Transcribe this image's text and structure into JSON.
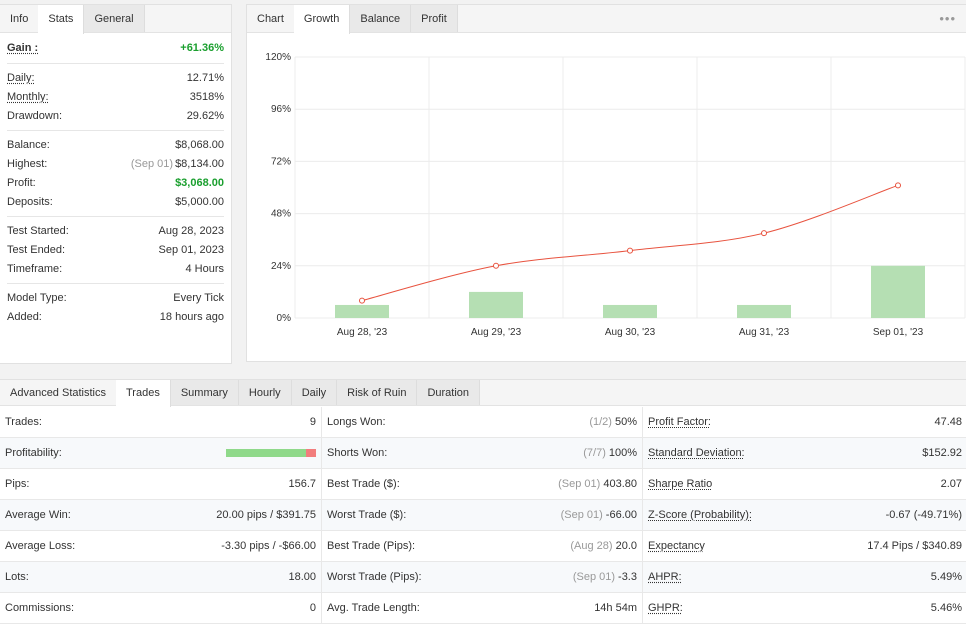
{
  "info_tabs": [
    "Info",
    "Stats",
    "General"
  ],
  "info": {
    "gain_label": "Gain :",
    "gain_value": "+61.36%",
    "rows_a": [
      {
        "k": "Daily:",
        "v": "12.71%",
        "und": true
      },
      {
        "k": "Monthly:",
        "v": "3518%",
        "und": true
      },
      {
        "k": "Drawdown:",
        "v": "29.62%",
        "und": false
      }
    ],
    "balance_label": "Balance:",
    "balance_value": "$8,068.00",
    "highest_label": "Highest:",
    "highest_date": "(Sep 01)",
    "highest_value": "$8,134.00",
    "profit_label": "Profit:",
    "profit_value": "$3,068.00",
    "deposits_label": "Deposits:",
    "deposits_value": "$5,000.00",
    "rows_c": [
      {
        "k": "Test Started:",
        "v": "Aug 28, 2023"
      },
      {
        "k": "Test Ended:",
        "v": "Sep 01, 2023"
      },
      {
        "k": "Timeframe:",
        "v": "4 Hours"
      }
    ],
    "rows_d": [
      {
        "k": "Model Type:",
        "v": "Every Tick"
      },
      {
        "k": "Added:",
        "v": "18 hours ago"
      }
    ]
  },
  "chart_tabs": [
    "Chart",
    "Growth",
    "Balance",
    "Profit"
  ],
  "more_icon": "more-horizontal-icon",
  "chart_data": {
    "type": "bar",
    "categories": [
      "Aug 28, '23",
      "Aug 29, '23",
      "Aug 30, '23",
      "Aug 31, '23",
      "Sep 01, '23"
    ],
    "y_ticks": [
      "0%",
      "24%",
      "48%",
      "72%",
      "96%",
      "120%"
    ],
    "ylim": [
      0,
      120
    ],
    "series": [
      {
        "type": "bar",
        "values": [
          6,
          12,
          6,
          6,
          24
        ],
        "color": "#b5dfb3"
      },
      {
        "type": "line",
        "values": [
          8,
          24,
          31,
          39,
          61
        ],
        "color": "#e8533f"
      }
    ],
    "grid": true
  },
  "adv_tabs": [
    "Advanced Statistics",
    "Trades",
    "Summary",
    "Hourly",
    "Daily",
    "Risk of Ruin",
    "Duration"
  ],
  "profitability": {
    "won": 0.89,
    "lost": 0.11
  },
  "adv_rows": [
    {
      "a_k": "Trades:",
      "a_v": "9",
      "b_k": "Longs Won:",
      "b_m": "(1/2)",
      "b_v": "50%",
      "c_k": "Profit Factor:",
      "c_v": "47.48"
    },
    {
      "a_k": "Profitability:",
      "a_v": "",
      "b_k": "Shorts Won:",
      "b_m": "(7/7)",
      "b_v": "100%",
      "c_k": "Standard Deviation:",
      "c_v": "$152.92"
    },
    {
      "a_k": "Pips:",
      "a_v": "156.7",
      "b_k": "Best Trade ($):",
      "b_m": "(Sep 01)",
      "b_v": "403.80",
      "c_k": "Sharpe Ratio",
      "c_v": "2.07"
    },
    {
      "a_k": "Average Win:",
      "a_v": "20.00 pips / $391.75",
      "b_k": "Worst Trade ($):",
      "b_m": "(Sep 01)",
      "b_v": "-66.00",
      "c_k": "Z-Score (Probability):",
      "c_v": "-0.67 (-49.71%)"
    },
    {
      "a_k": "Average Loss:",
      "a_v": "-3.30 pips / -$66.00",
      "b_k": "Best Trade (Pips):",
      "b_m": "(Aug 28)",
      "b_v": "20.0",
      "c_k": "Expectancy",
      "c_v": "17.4 Pips / $340.89"
    },
    {
      "a_k": "Lots:",
      "a_v": "18.00",
      "b_k": "Worst Trade (Pips):",
      "b_m": "(Sep 01)",
      "b_v": "-3.3",
      "c_k": "AHPR:",
      "c_v": "5.49%"
    },
    {
      "a_k": "Commissions:",
      "a_v": "0",
      "b_k": "Avg. Trade Length:",
      "b_m": "",
      "b_v": "14h 54m",
      "c_k": "GHPR:",
      "c_v": "5.46%"
    }
  ]
}
